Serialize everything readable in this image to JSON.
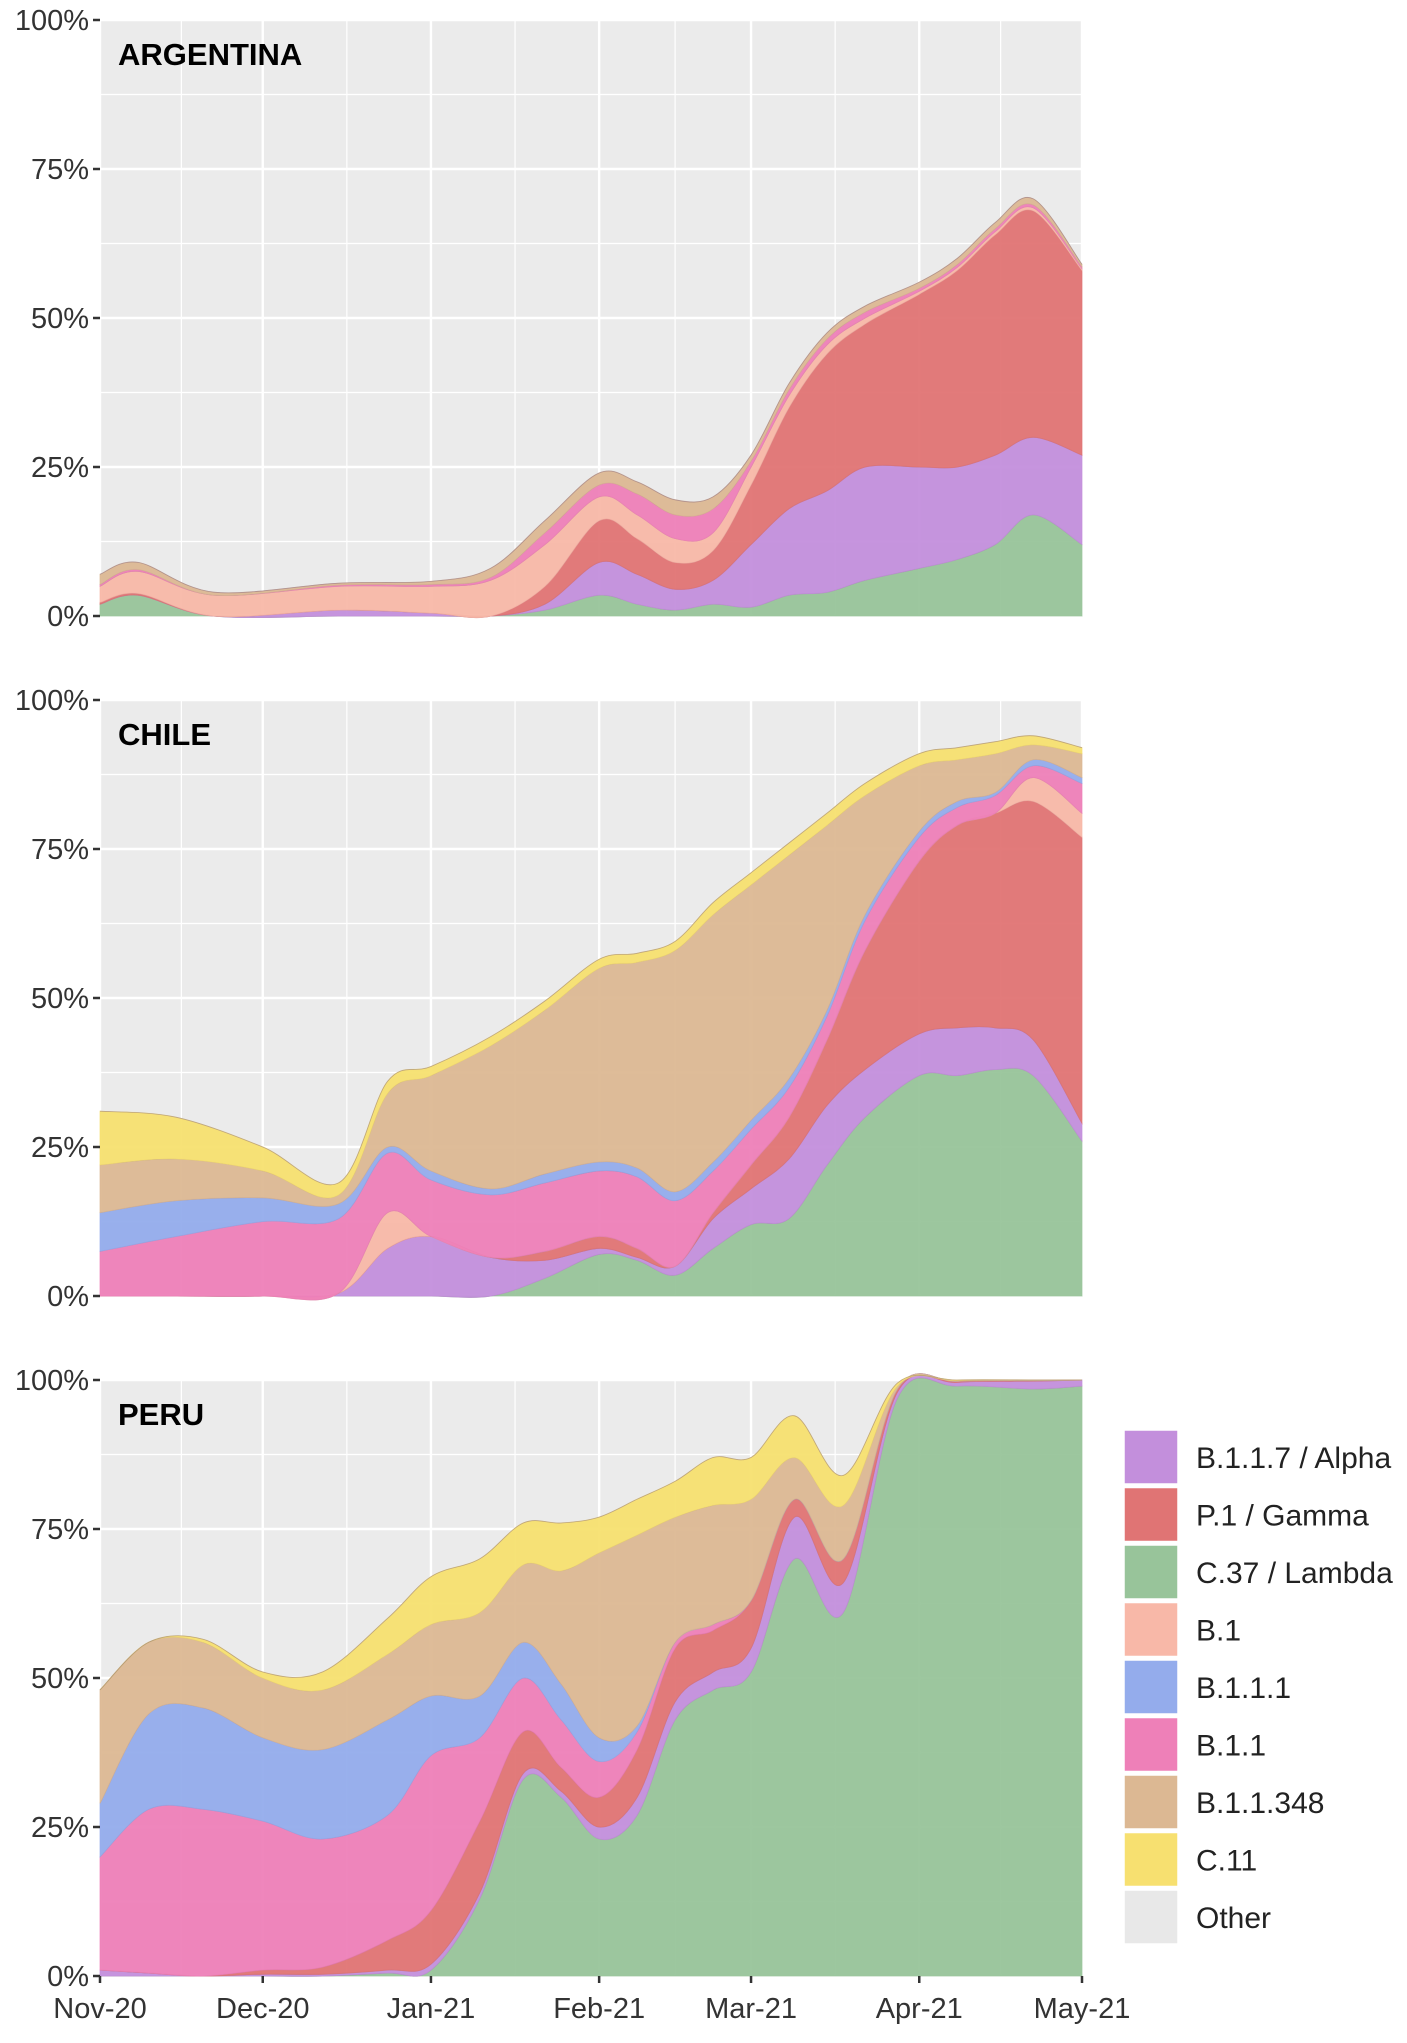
{
  "legend": {
    "entries": [
      {
        "name": "B.1.1.7 / Alpha",
        "color": "#c38fdc"
      },
      {
        "name": "P.1 / Gamma",
        "color": "#e07474"
      },
      {
        "name": "C.37 / Lambda",
        "color": "#98c49a"
      },
      {
        "name": "B.1",
        "color": "#f8b8a8"
      },
      {
        "name": "B.1.1.1",
        "color": "#94acec"
      },
      {
        "name": "B.1.1",
        "color": "#ee80b8"
      },
      {
        "name": "B.1.1.348",
        "color": "#dcb893"
      },
      {
        "name": "C.11",
        "color": "#f7e070"
      },
      {
        "name": "Other",
        "color": "#e8e8e8"
      }
    ],
    "placement": "right"
  },
  "chart_data": [
    {
      "type": "area",
      "stacked": true,
      "title": "ARGENTINA",
      "ylim": [
        0,
        100
      ],
      "xlim": [
        "2020-11-01",
        "2021-05-01"
      ],
      "yticks": [
        "0%",
        "25%",
        "50%",
        "75%",
        "100%"
      ],
      "xticks": [],
      "grid": true,
      "x": [
        "2020-11-01",
        "2020-11-08",
        "2020-11-22",
        "2020-12-15",
        "2021-01-01",
        "2021-01-12",
        "2021-01-22",
        "2021-02-01",
        "2021-02-08",
        "2021-02-15",
        "2021-02-22",
        "2021-03-01",
        "2021-03-08",
        "2021-03-15",
        "2021-03-22",
        "2021-04-01",
        "2021-04-08",
        "2021-04-15",
        "2021-04-22",
        "2021-05-01"
      ],
      "series": [
        {
          "name": "C.37 / Lambda",
          "values": [
            2,
            3.5,
            0,
            0,
            0,
            0,
            1,
            3.5,
            2,
            1,
            2,
            1.5,
            3.5,
            4,
            6,
            8,
            9.5,
            12,
            17,
            12
          ]
        },
        {
          "name": "B.1.1.7 / Alpha",
          "values": [
            0,
            0,
            0,
            1,
            0.5,
            0,
            1,
            5.5,
            5,
            3.5,
            4,
            10.5,
            14.5,
            17,
            19,
            17,
            15.5,
            15,
            13,
            15
          ]
        },
        {
          "name": "P.1 / Gamma",
          "values": [
            0.3,
            0.3,
            0,
            0,
            0,
            0,
            3,
            7,
            6,
            4.5,
            5,
            10,
            17,
            23,
            24,
            29,
            33,
            37,
            38,
            31
          ]
        },
        {
          "name": "B.1",
          "values": [
            2.7,
            3.7,
            3.5,
            4,
            4.5,
            6,
            7,
            4,
            4,
            4,
            3,
            3,
            2,
            1.5,
            1,
            0.5,
            0.5,
            0.5,
            0.5,
            0.3
          ]
        },
        {
          "name": "B.1.1",
          "values": [
            0.3,
            0.3,
            0,
            0.2,
            0.3,
            0.5,
            2,
            2,
            3.5,
            4,
            4,
            1,
            1,
            1,
            1,
            0.5,
            0.5,
            0.5,
            0.5,
            0.3
          ]
        },
        {
          "name": "B.1.1.1",
          "values": [
            0,
            0,
            0,
            0,
            0,
            0,
            0,
            0,
            0,
            0,
            0,
            0,
            0,
            0,
            0,
            0,
            0,
            0,
            0,
            0
          ]
        },
        {
          "name": "B.1.1.348",
          "values": [
            1.7,
            1.2,
            0.5,
            0.3,
            0.5,
            1.5,
            2,
            2,
            2,
            2.5,
            2,
            1,
            1,
            1,
            1,
            1,
            1,
            1,
            1,
            0.4
          ]
        },
        {
          "name": "C.11",
          "values": [
            0,
            0,
            0,
            0,
            0,
            0,
            0,
            0,
            0,
            0,
            0,
            0,
            0,
            0,
            0,
            0,
            0,
            0,
            0,
            0
          ]
        }
      ]
    },
    {
      "type": "area",
      "stacked": true,
      "title": "CHILE",
      "ylim": [
        0,
        100
      ],
      "xlim": [
        "2020-11-01",
        "2021-05-01"
      ],
      "yticks": [
        "0%",
        "25%",
        "50%",
        "75%",
        "100%"
      ],
      "xticks": [],
      "grid": true,
      "x": [
        "2020-11-01",
        "2020-11-15",
        "2020-12-01",
        "2020-12-15",
        "2020-12-24",
        "2021-01-01",
        "2021-01-12",
        "2021-01-22",
        "2021-02-01",
        "2021-02-08",
        "2021-02-15",
        "2021-02-22",
        "2021-03-01",
        "2021-03-08",
        "2021-03-15",
        "2021-03-22",
        "2021-04-01",
        "2021-04-08",
        "2021-04-15",
        "2021-04-22",
        "2021-05-01"
      ],
      "series": [
        {
          "name": "C.37 / Lambda",
          "values": [
            0,
            0,
            0,
            0,
            0,
            0,
            0,
            3,
            7,
            6,
            3.5,
            8,
            12,
            13,
            22,
            30,
            37,
            37,
            38,
            37,
            26
          ]
        },
        {
          "name": "B.1.1.7 / Alpha",
          "values": [
            0,
            0,
            0,
            0.5,
            8,
            10,
            6.5,
            3,
            1,
            0.5,
            1.5,
            5,
            6,
            10,
            10,
            8,
            7,
            8,
            7,
            6,
            3
          ]
        },
        {
          "name": "P.1 / Gamma",
          "values": [
            0,
            0,
            0,
            0,
            0,
            0,
            0,
            1.5,
            2,
            1.5,
            0,
            1,
            4,
            7,
            11,
            20,
            29,
            34,
            36,
            40,
            48
          ]
        },
        {
          "name": "B.1",
          "values": [
            0,
            0,
            0,
            0,
            6,
            0,
            0,
            0,
            0,
            0,
            0,
            0,
            0,
            0,
            0,
            0,
            0,
            0,
            0,
            4,
            4
          ]
        },
        {
          "name": "B.1.1",
          "values": [
            7.5,
            10,
            12.5,
            12.5,
            10,
            9.5,
            10.5,
            11.5,
            11,
            12,
            11,
            7,
            6,
            5,
            4,
            5,
            4,
            3,
            3,
            2,
            5
          ]
        },
        {
          "name": "B.1.1.1",
          "values": [
            6.5,
            6,
            4,
            2.5,
            1,
            1.5,
            1,
            1.5,
            1.5,
            1.5,
            1.5,
            1.5,
            1.5,
            1.5,
            1,
            1,
            1,
            1,
            0.5,
            1,
            1
          ]
        },
        {
          "name": "B.1.1.348",
          "values": [
            8,
            7,
            4.5,
            1.5,
            9,
            16,
            24,
            27.5,
            32.5,
            34.5,
            40.5,
            41.5,
            39.5,
            37.5,
            31,
            20,
            11,
            7,
            6.5,
            2.5,
            4
          ]
        },
        {
          "name": "C.11",
          "values": [
            9,
            7,
            4,
            2,
            2,
            1.5,
            1.5,
            1.5,
            1.5,
            1.5,
            1.5,
            2,
            2,
            2,
            2,
            2,
            2,
            2,
            2,
            1.5,
            1
          ]
        }
      ]
    },
    {
      "type": "area",
      "stacked": true,
      "title": "PERU",
      "ylim": [
        0,
        100
      ],
      "xlim": [
        "2020-11-01",
        "2021-05-01"
      ],
      "yticks": [
        "0%",
        "25%",
        "50%",
        "75%",
        "100%"
      ],
      "xticks": [
        "Nov-20",
        "Dec-20",
        "Jan-21",
        "Feb-21",
        "Mar-21",
        "Apr-21",
        "May-21"
      ],
      "grid": true,
      "x": [
        "2020-11-01",
        "2020-11-10",
        "2020-11-20",
        "2020-12-01",
        "2020-12-12",
        "2020-12-24",
        "2021-01-01",
        "2021-01-10",
        "2021-01-18",
        "2021-01-25",
        "2021-02-01",
        "2021-02-08",
        "2021-02-15",
        "2021-02-22",
        "2021-03-01",
        "2021-03-09",
        "2021-03-18",
        "2021-03-28",
        "2021-04-08",
        "2021-04-22",
        "2021-05-01"
      ],
      "series": [
        {
          "name": "C.37 / Lambda",
          "values": [
            0,
            0,
            0,
            0,
            0,
            0.5,
            1,
            13,
            33,
            30,
            23,
            27,
            43,
            48,
            51,
            70,
            61,
            97,
            99,
            98.5,
            99
          ]
        },
        {
          "name": "B.1.1.7 / Alpha",
          "values": [
            1,
            0.5,
            0,
            0.3,
            0.3,
            0.5,
            1,
            1,
            1,
            1,
            2,
            3,
            3,
            3,
            4,
            7,
            5,
            1,
            0.6,
            1.3,
            1
          ]
        },
        {
          "name": "P.1 / Gamma",
          "values": [
            0,
            0,
            0,
            0.7,
            1.2,
            5,
            9,
            12,
            7,
            4,
            5,
            8,
            9,
            7,
            8,
            3,
            4,
            0.5,
            0.2,
            0.1,
            0
          ]
        },
        {
          "name": "B.1",
          "values": [
            0,
            0,
            0,
            0,
            0,
            0,
            0,
            0,
            0,
            0,
            0,
            0,
            0,
            0,
            0,
            0,
            0,
            0,
            0,
            0,
            0
          ]
        },
        {
          "name": "B.1.1",
          "values": [
            19,
            27.5,
            28,
            25,
            21.5,
            21,
            26,
            14,
            9,
            8,
            6,
            3,
            1,
            1,
            0,
            0,
            0,
            0,
            0,
            0,
            0
          ]
        },
        {
          "name": "B.1.1.1",
          "values": [
            9,
            16,
            17,
            14,
            15,
            16,
            10,
            7,
            6,
            6,
            4,
            1,
            0,
            0,
            0,
            0,
            0,
            0,
            0,
            0,
            0
          ]
        },
        {
          "name": "B.1.1.348",
          "values": [
            19,
            12,
            11,
            10,
            10,
            11,
            12,
            14,
            13,
            19,
            31,
            32,
            21,
            20,
            17,
            7,
            9,
            0.5,
            0.1,
            0.1,
            0
          ]
        },
        {
          "name": "C.11",
          "values": [
            0,
            0,
            0.5,
            1,
            3,
            6,
            8,
            9,
            7,
            8,
            6,
            6,
            6,
            8,
            7,
            7,
            5,
            0.5,
            0.1,
            0,
            0
          ]
        }
      ]
    }
  ]
}
